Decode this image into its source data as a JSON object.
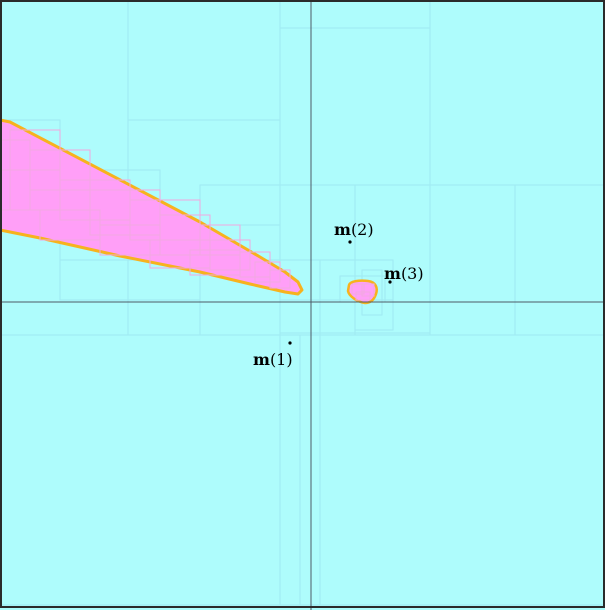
{
  "colors": {
    "background": "#aefcfc",
    "paving_grid": "#9fe9f2",
    "region_fill": "#ff9ff7",
    "region_border": "#f7b21e",
    "axis": "#4d5a66",
    "frame": "#2b2b2b",
    "point": "#000000"
  },
  "points": [
    {
      "id": "m1",
      "bold": "m",
      "rest": "(1)"
    },
    {
      "id": "m2",
      "bold": "m",
      "rest": "(2)"
    },
    {
      "id": "m3",
      "bold": "m",
      "rest": "(3)"
    }
  ]
}
